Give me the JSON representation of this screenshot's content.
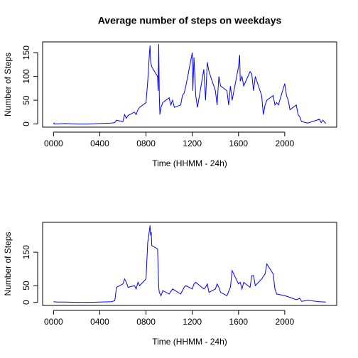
{
  "chart_data": [
    {
      "type": "line",
      "title": "Average number of steps on weekdays",
      "xlabel": "Time (HHMM - 24h)",
      "ylabel": "Number of Steps",
      "x": [
        0,
        5,
        10,
        100,
        200,
        300,
        400,
        500,
        530,
        545,
        600,
        615,
        630,
        645,
        700,
        715,
        730,
        745,
        800,
        815,
        830,
        835,
        840,
        850,
        900,
        905,
        910,
        915,
        920,
        930,
        945,
        1000,
        1015,
        1030,
        1045,
        1100,
        1115,
        1130,
        1145,
        1200,
        1205,
        1215,
        1230,
        1245,
        1300,
        1315,
        1330,
        1345,
        1400,
        1415,
        1430,
        1445,
        1500,
        1515,
        1530,
        1545,
        1600,
        1610,
        1615,
        1630,
        1645,
        1700,
        1715,
        1730,
        1745,
        1800,
        1815,
        1830,
        1845,
        1900,
        1915,
        1930,
        1945,
        2000,
        2015,
        2030,
        2045,
        2100,
        2115,
        2130,
        2145,
        2200,
        2300,
        2315,
        2330,
        2355
      ],
      "series": [
        {
          "name": "steps",
          "color": "#0000ff",
          "values": [
            0,
            2,
            0,
            1,
            0,
            0,
            1,
            2,
            3,
            8,
            5,
            20,
            12,
            18,
            25,
            20,
            30,
            35,
            45,
            90,
            150,
            165,
            130,
            120,
            100,
            70,
            168,
            60,
            20,
            35,
            45,
            55,
            40,
            50,
            35,
            40,
            60,
            65,
            80,
            150,
            70,
            140,
            60,
            35,
            115,
            50,
            130,
            110,
            70,
            40,
            100,
            80,
            70,
            40,
            80,
            50,
            120,
            145,
            90,
            100,
            80,
            110,
            105,
            70,
            100,
            60,
            20,
            40,
            50,
            60,
            40,
            45,
            40,
            85,
            60,
            50,
            30,
            40,
            20,
            15,
            5,
            2,
            10,
            3,
            8,
            1
          ]
        }
      ],
      "xlim": [
        -94.2,
        2449.2
      ],
      "ylim": [
        -6.6,
        172.6
      ],
      "xticks": [
        {
          "value": 0,
          "label": "0000"
        },
        {
          "value": 400,
          "label": "0400"
        },
        {
          "value": 800,
          "label": "0800"
        },
        {
          "value": 1200,
          "label": "1200"
        },
        {
          "value": 1600,
          "label": "1600"
        },
        {
          "value": 2000,
          "label": "2000"
        }
      ],
      "yticks": [
        0,
        50,
        100,
        150
      ]
    },
    {
      "type": "line",
      "xlabel": "Time (HHMM - 24h)",
      "ylabel": "Number of Steps",
      "x": [
        0,
        30,
        100,
        200,
        300,
        400,
        500,
        530,
        545,
        600,
        615,
        630,
        645,
        700,
        715,
        730,
        745,
        800,
        815,
        820,
        835,
        840,
        845,
        850,
        900,
        910,
        915,
        930,
        945,
        1000,
        1030,
        1100,
        1130,
        1145,
        1200,
        1215,
        1230,
        1300,
        1315,
        1330,
        1345,
        1400,
        1415,
        1430,
        1445,
        1500,
        1530,
        1545,
        1600,
        1615,
        1630,
        1645,
        1700,
        1715,
        1730,
        1745,
        1800,
        1830,
        1845,
        1900,
        1915,
        1930,
        2000,
        2045,
        2100,
        2130,
        2145,
        2200,
        2300,
        2355
      ],
      "series": [
        {
          "name": "steps",
          "color": "#0000ff",
          "values": [
            2,
            1,
            1,
            0,
            0,
            1,
            2,
            5,
            45,
            55,
            70,
            60,
            45,
            50,
            40,
            60,
            50,
            70,
            180,
            190,
            230,
            200,
            210,
            170,
            160,
            45,
            30,
            20,
            35,
            25,
            40,
            25,
            45,
            50,
            40,
            55,
            60,
            40,
            45,
            55,
            30,
            40,
            55,
            45,
            30,
            20,
            45,
            95,
            55,
            60,
            40,
            60,
            45,
            80,
            80,
            50,
            70,
            85,
            115,
            85,
            40,
            25,
            20,
            15,
            8,
            12,
            3,
            6,
            2,
            1
          ]
        }
      ],
      "xlim": [
        -94.2,
        2449.2
      ],
      "ylim": [
        -9.2,
        239.4
      ],
      "xticks": [
        {
          "value": 0,
          "label": "0000"
        },
        {
          "value": 400,
          "label": "0400"
        },
        {
          "value": 800,
          "label": "0800"
        },
        {
          "value": 1200,
          "label": "1200"
        },
        {
          "value": 1600,
          "label": "1600"
        },
        {
          "value": 2000,
          "label": "2000"
        }
      ],
      "yticks": [
        0,
        50,
        150
      ]
    }
  ]
}
